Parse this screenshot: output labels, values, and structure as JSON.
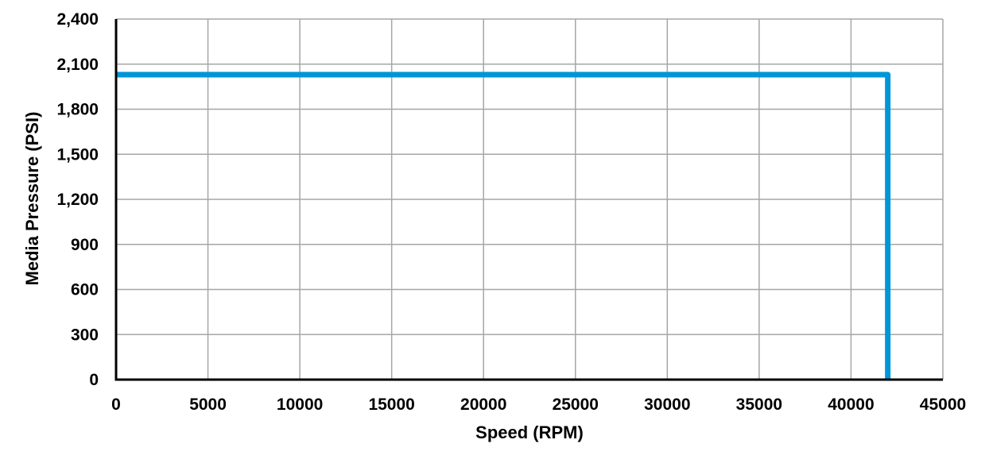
{
  "chart_data": {
    "type": "line",
    "title": "",
    "xlabel": "Speed (RPM)",
    "ylabel": "Media Pressure (PSI)",
    "xlim": [
      0,
      45000
    ],
    "ylim": [
      0,
      2400
    ],
    "x_ticks": [
      0,
      5000,
      10000,
      15000,
      20000,
      25000,
      30000,
      35000,
      40000,
      45000
    ],
    "x_tick_labels": [
      "0",
      "5000",
      "10000",
      "15000",
      "20000",
      "25000",
      "30000",
      "35000",
      "40000",
      "45000"
    ],
    "y_ticks": [
      0,
      300,
      600,
      900,
      1200,
      1500,
      1800,
      2100,
      2400
    ],
    "y_tick_labels": [
      "0",
      "300",
      "600",
      "900",
      "1,200",
      "1,500",
      "1,800",
      "2,100",
      "2,400"
    ],
    "grid": true,
    "legend": "none",
    "series": [
      {
        "color": "#0096D6",
        "x": [
          0,
          42000,
          42000
        ],
        "y": [
          2030,
          2030,
          0
        ]
      }
    ]
  }
}
